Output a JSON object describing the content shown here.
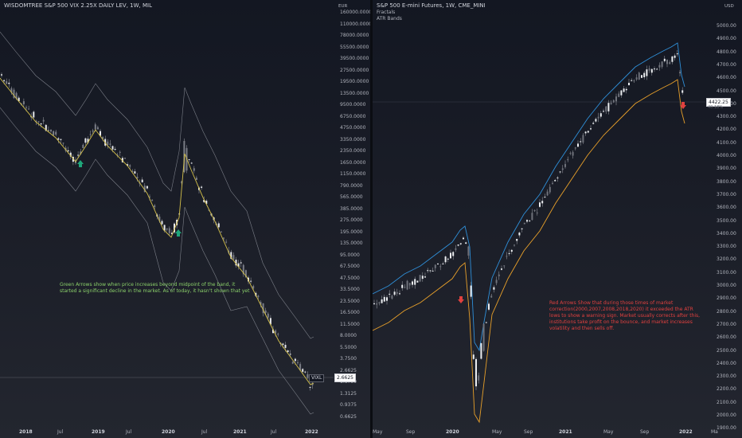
{
  "left": {
    "title": "WISDOMTREE S&P 500 VIX 2.25X DAILY LEV, 1W, MIL",
    "currency": "EUR",
    "y_ticks": [
      "160000.0000",
      "110000.0000",
      "78000.0000",
      "55500.0000",
      "39500.0000",
      "27500.0000",
      "19500.0000",
      "13500.0000",
      "9500.0000",
      "6750.0000",
      "4750.0000",
      "3350.0000",
      "2350.0000",
      "1650.0000",
      "1150.0000",
      "790.0000",
      "565.0000",
      "385.0000",
      "275.0000",
      "195.0000",
      "135.0000",
      "95.0000",
      "67.5000",
      "47.5000",
      "33.5000",
      "23.5000",
      "16.5000",
      "11.5000",
      "8.0000",
      "5.5000",
      "3.7500",
      "2.6625",
      "1.8750",
      "1.3125",
      "0.9375",
      "0.6625"
    ],
    "x_ticks": [
      "2018",
      "Jul",
      "2019",
      "Jul",
      "2020",
      "Jul",
      "2021",
      "Jul",
      "2022"
    ],
    "x_bold": [
      true,
      false,
      true,
      false,
      true,
      false,
      true,
      false,
      true
    ],
    "symbol": "VIXL",
    "price_badge": "2.6625",
    "note": "Green Arrows show when price increases beyond midpoint of the band, it started a significant decline in the market. As of today, it hasn't shown that yet",
    "colors": {
      "note": "#8bd06a",
      "arrow": "#1fa67a",
      "sma": "#d4c04a",
      "band": "#9598a1"
    }
  },
  "right": {
    "title": "S&P 500 E-mini Futures, 1W, CME_MINI",
    "indicators": [
      "Fractals",
      "ATR Bands"
    ],
    "currency": "USD",
    "y_ticks": [
      "5000.00",
      "4900.00",
      "4800.00",
      "4700.00",
      "4600.00",
      "4500.00",
      "4400.00",
      "4300.00",
      "4200.00",
      "4100.00",
      "4000.00",
      "3900.00",
      "3800.00",
      "3700.00",
      "3600.00",
      "3500.00",
      "3400.00",
      "3300.00",
      "3200.00",
      "3100.00",
      "3000.00",
      "2900.00",
      "2800.00",
      "2700.00",
      "2600.00",
      "2500.00",
      "2400.00",
      "2300.00",
      "2200.00",
      "2100.00",
      "2000.00",
      "1900.00"
    ],
    "x_ticks": [
      "May",
      "Sep",
      "2020",
      "May",
      "Sep",
      "2021",
      "May",
      "Sep",
      "2022",
      "Ma"
    ],
    "x_bold": [
      false,
      false,
      true,
      false,
      false,
      true,
      false,
      false,
      true,
      false
    ],
    "price_badge": "4422.25",
    "price_pct": "40.18%",
    "note": "Red Arrows Show that during those times of market correction(2000,2007,2008,2018,2020) it exceeded the ATR lows to show a warning sign. Market usually corrects after this, institutions take profit on the bounce, and market increases volatility and then sells off.",
    "colors": {
      "note": "#e0413f",
      "arrow": "#e0413f",
      "upper_band": "#2f8fd8",
      "lower_band": "#e8a02a"
    }
  }
}
